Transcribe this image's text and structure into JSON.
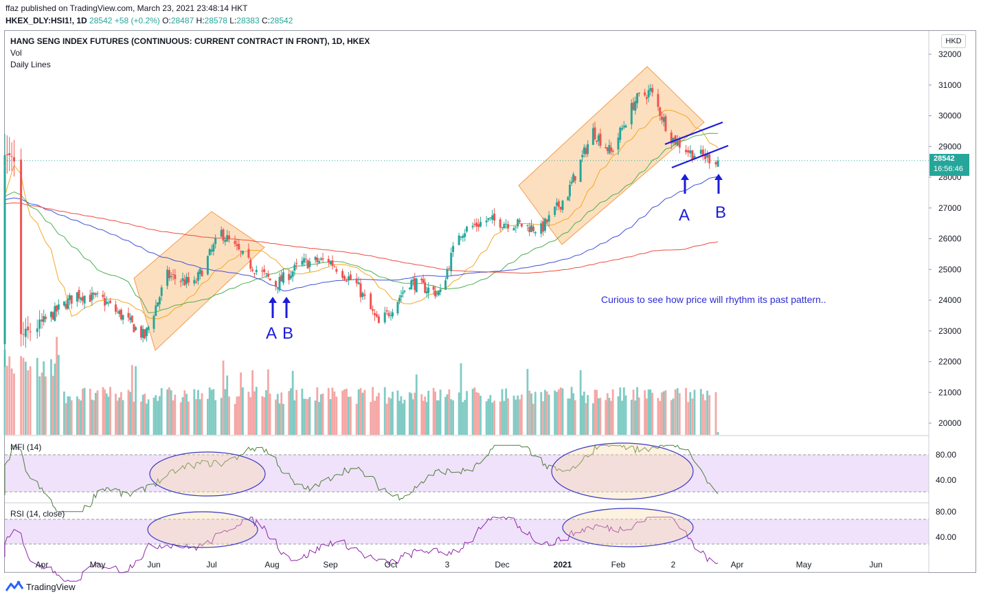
{
  "header": {
    "publisher_line": "ffaz published on TradingView.com, March 23, 2021 23:48:14 HKT",
    "symbol": "HKEX_DLY:HSI1!, 1D",
    "close_val": "28542",
    "change": "+58 (+0.2%)",
    "o_label": "O:",
    "o_val": "28487",
    "h_label": "H:",
    "h_val": "28578",
    "l_label": "L:",
    "l_val": "28383",
    "c_label": "C:",
    "c_val": "28542"
  },
  "panes": {
    "title": "HANG SENG INDEX FUTURES (CONTINUOUS: CURRENT CONTRACT IN FRONT), 1D, HKEX",
    "vol_label": "Vol",
    "daily_lines_label": "Daily Lines",
    "mfi_label": "MFI (14)",
    "rsi_label": "RSI (14, close)"
  },
  "currency_badge": "HKD",
  "price_tag": {
    "price": "28542",
    "countdown": "16:56:46"
  },
  "annotations": {
    "note": "Curious to see how price will rhythm its past pattern..",
    "a1": "A",
    "b1": "B",
    "a2": "A",
    "b2": "B"
  },
  "footer": {
    "brand": "TradingView"
  },
  "colors": {
    "up": "#26a69a",
    "down": "#ef5350",
    "vol_up": "#80cbc4",
    "vol_down": "#f4a7a5",
    "ma_orange": "#f5a623",
    "ma_green": "#4caf50",
    "ma_blue": "#3f51d8",
    "ma_red": "#ef4b3c",
    "mfi_line": "#4c7d3a",
    "rsi_line": "#8e24aa",
    "band_fill": "#f0e2fa",
    "highlight": "#f9c48b",
    "annotation_blue": "#1c1cd8"
  },
  "chart_data": {
    "type": "candlestick",
    "price_axis": {
      "ticks": [
        32000,
        31000,
        30000,
        29000,
        28000,
        27000,
        26000,
        25000,
        24000,
        23000,
        22000,
        21000,
        20000
      ]
    },
    "time_axis": {
      "ticks": [
        "Apr",
        "May",
        "Jun",
        "Jul",
        "Aug",
        "Sep",
        "Oct",
        "3",
        "Dec",
        "2021",
        "Feb",
        "2",
        "Apr",
        "May",
        "Jun"
      ]
    },
    "last_price": 28542,
    "price_path": [
      [
        "2020-03-23",
        22800
      ],
      [
        "2020-04-06",
        23500
      ],
      [
        "2020-04-20",
        24200
      ],
      [
        "2020-05-04",
        24000
      ],
      [
        "2020-05-18",
        23300
      ],
      [
        "2020-05-27",
        22800
      ],
      [
        "2020-06-08",
        24800
      ],
      [
        "2020-06-22",
        24500
      ],
      [
        "2020-07-06",
        26200
      ],
      [
        "2020-07-20",
        25200
      ],
      [
        "2020-08-03",
        24500
      ],
      [
        "2020-08-17",
        25200
      ],
      [
        "2020-08-31",
        25300
      ],
      [
        "2020-09-14",
        24500
      ],
      [
        "2020-09-25",
        23200
      ],
      [
        "2020-10-12",
        24600
      ],
      [
        "2020-10-30",
        24200
      ],
      [
        "2020-11-09",
        26200
      ],
      [
        "2020-11-23",
        26600
      ],
      [
        "2020-12-07",
        26500
      ],
      [
        "2020-12-21",
        26300
      ],
      [
        "2021-01-04",
        27500
      ],
      [
        "2021-01-18",
        29500
      ],
      [
        "2021-01-28",
        28800
      ],
      [
        "2021-02-10",
        30500
      ],
      [
        "2021-02-18",
        30800
      ],
      [
        "2021-03-01",
        29300
      ],
      [
        "2021-03-10",
        28800
      ],
      [
        "2021-03-23",
        28542
      ]
    ],
    "mfi": {
      "levels": [
        80,
        40
      ]
    },
    "rsi": {
      "levels": [
        80,
        40
      ]
    }
  }
}
